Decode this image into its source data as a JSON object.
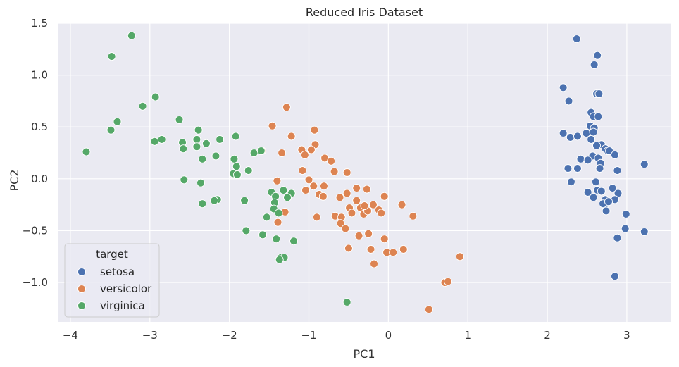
{
  "chart_data": {
    "type": "scatter",
    "title": "Reduced Iris Dataset",
    "xlabel": "PC1",
    "ylabel": "PC2",
    "xlim": [
      -4.15,
      3.55
    ],
    "ylim": [
      -1.38,
      1.5
    ],
    "xticks": [
      -4,
      -3,
      -2,
      -1,
      0,
      1,
      2,
      3
    ],
    "xtick_labels": [
      "−4",
      "−3",
      "−2",
      "−1",
      "0",
      "1",
      "2",
      "3"
    ],
    "yticks": [
      -1.0,
      -0.5,
      0.0,
      0.5,
      1.0,
      1.5
    ],
    "ytick_labels": [
      "−1.0",
      "−0.5",
      "0.0",
      "0.5",
      "1.0",
      "1.5"
    ],
    "grid": true,
    "legend": {
      "title": "target",
      "position": "bottom-left"
    },
    "series": [
      {
        "name": "setosa",
        "color": "#4c72b0",
        "points": [
          [
            2.37,
            1.35
          ],
          [
            2.63,
            1.19
          ],
          [
            2.59,
            1.1
          ],
          [
            2.62,
            0.82
          ],
          [
            2.65,
            0.82
          ],
          [
            2.2,
            0.88
          ],
          [
            2.27,
            0.75
          ],
          [
            2.55,
            0.64
          ],
          [
            2.58,
            0.6
          ],
          [
            2.64,
            0.6
          ],
          [
            2.54,
            0.51
          ],
          [
            2.59,
            0.49
          ],
          [
            2.2,
            0.44
          ],
          [
            2.29,
            0.4
          ],
          [
            2.38,
            0.41
          ],
          [
            2.49,
            0.44
          ],
          [
            2.58,
            0.45
          ],
          [
            2.55,
            0.38
          ],
          [
            2.68,
            0.33
          ],
          [
            2.62,
            0.32
          ],
          [
            2.73,
            0.29
          ],
          [
            2.76,
            0.27
          ],
          [
            2.78,
            0.27
          ],
          [
            2.57,
            0.22
          ],
          [
            2.64,
            0.2
          ],
          [
            2.85,
            0.23
          ],
          [
            2.42,
            0.19
          ],
          [
            2.51,
            0.18
          ],
          [
            2.67,
            0.15
          ],
          [
            3.22,
            0.14
          ],
          [
            2.26,
            0.1
          ],
          [
            2.38,
            0.1
          ],
          [
            2.66,
            0.1
          ],
          [
            2.88,
            0.08
          ],
          [
            2.3,
            -0.03
          ],
          [
            2.61,
            -0.03
          ],
          [
            2.82,
            -0.09
          ],
          [
            2.51,
            -0.13
          ],
          [
            2.63,
            -0.11
          ],
          [
            2.68,
            -0.12
          ],
          [
            2.89,
            -0.14
          ],
          [
            2.58,
            -0.18
          ],
          [
            2.73,
            -0.2
          ],
          [
            2.85,
            -0.2
          ],
          [
            2.72,
            -0.25
          ],
          [
            2.7,
            -0.24
          ],
          [
            2.77,
            -0.22
          ],
          [
            2.74,
            -0.31
          ],
          [
            2.99,
            -0.34
          ],
          [
            2.98,
            -0.48
          ],
          [
            3.22,
            -0.51
          ],
          [
            2.88,
            -0.57
          ],
          [
            2.85,
            -0.94
          ]
        ]
      },
      {
        "name": "versicolor",
        "color": "#dd8452",
        "points": [
          [
            -1.28,
            0.69
          ],
          [
            -1.46,
            0.51
          ],
          [
            -0.93,
            0.47
          ],
          [
            -1.22,
            0.41
          ],
          [
            -0.92,
            0.33
          ],
          [
            -0.97,
            0.28
          ],
          [
            -1.59,
            0.27
          ],
          [
            -1.34,
            0.25
          ],
          [
            -1.09,
            0.28
          ],
          [
            -1.05,
            0.23
          ],
          [
            -0.8,
            0.2
          ],
          [
            -0.72,
            0.17
          ],
          [
            -1.08,
            0.08
          ],
          [
            -1.0,
            -0.01
          ],
          [
            -1.4,
            -0.02
          ],
          [
            -0.68,
            0.07
          ],
          [
            -0.52,
            0.06
          ],
          [
            -0.94,
            -0.07
          ],
          [
            -0.81,
            -0.07
          ],
          [
            -1.04,
            -0.11
          ],
          [
            -0.87,
            -0.15
          ],
          [
            -0.4,
            -0.09
          ],
          [
            -0.52,
            -0.14
          ],
          [
            -0.27,
            -0.1
          ],
          [
            -0.61,
            -0.18
          ],
          [
            -0.82,
            -0.17
          ],
          [
            -1.27,
            -0.18
          ],
          [
            -0.4,
            -0.21
          ],
          [
            -0.05,
            -0.17
          ],
          [
            -0.49,
            -0.28
          ],
          [
            -0.35,
            -0.28
          ],
          [
            -0.46,
            -0.33
          ],
          [
            -0.31,
            -0.34
          ],
          [
            -0.26,
            -0.31
          ],
          [
            -0.3,
            -0.26
          ],
          [
            -0.12,
            -0.3
          ],
          [
            -0.09,
            -0.33
          ],
          [
            -0.19,
            -0.25
          ],
          [
            -1.3,
            -0.32
          ],
          [
            -0.9,
            -0.37
          ],
          [
            -0.67,
            -0.36
          ],
          [
            -0.59,
            -0.37
          ],
          [
            0.17,
            -0.25
          ],
          [
            0.31,
            -0.36
          ],
          [
            -1.39,
            -0.42
          ],
          [
            -0.6,
            -0.43
          ],
          [
            -0.54,
            -0.48
          ],
          [
            -0.25,
            -0.53
          ],
          [
            -0.37,
            -0.55
          ],
          [
            -0.05,
            -0.58
          ],
          [
            -0.5,
            -0.67
          ],
          [
            -0.22,
            -0.68
          ],
          [
            -0.02,
            -0.71
          ],
          [
            0.06,
            -0.71
          ],
          [
            0.19,
            -0.68
          ],
          [
            0.9,
            -0.75
          ],
          [
            -0.18,
            -0.82
          ],
          [
            0.71,
            -1.0
          ],
          [
            0.75,
            -0.99
          ],
          [
            0.51,
            -1.26
          ]
        ]
      },
      {
        "name": "virginica",
        "color": "#55a868",
        "points": [
          [
            -3.23,
            1.38
          ],
          [
            -3.48,
            1.18
          ],
          [
            -2.93,
            0.79
          ],
          [
            -3.09,
            0.7
          ],
          [
            -2.63,
            0.57
          ],
          [
            -3.41,
            0.55
          ],
          [
            -3.49,
            0.47
          ],
          [
            -2.39,
            0.47
          ],
          [
            -1.92,
            0.41
          ],
          [
            -3.8,
            0.26
          ],
          [
            -2.94,
            0.36
          ],
          [
            -2.85,
            0.38
          ],
          [
            -2.59,
            0.35
          ],
          [
            -2.41,
            0.38
          ],
          [
            -2.29,
            0.34
          ],
          [
            -2.12,
            0.38
          ],
          [
            -2.58,
            0.29
          ],
          [
            -2.41,
            0.31
          ],
          [
            -2.17,
            0.22
          ],
          [
            -1.94,
            0.19
          ],
          [
            -1.69,
            0.25
          ],
          [
            -1.6,
            0.27
          ],
          [
            -2.34,
            0.19
          ],
          [
            -1.91,
            0.12
          ],
          [
            -1.76,
            0.08
          ],
          [
            -1.95,
            0.05
          ],
          [
            -1.9,
            0.04
          ],
          [
            -2.57,
            -0.01
          ],
          [
            -2.36,
            -0.04
          ],
          [
            -1.47,
            -0.13
          ],
          [
            -1.32,
            -0.11
          ],
          [
            -1.22,
            -0.14
          ],
          [
            -1.27,
            -0.18
          ],
          [
            -1.42,
            -0.17
          ],
          [
            -2.15,
            -0.2
          ],
          [
            -1.81,
            -0.21
          ],
          [
            -2.19,
            -0.21
          ],
          [
            -1.43,
            -0.23
          ],
          [
            -2.34,
            -0.24
          ],
          [
            -1.44,
            -0.29
          ],
          [
            -1.53,
            -0.37
          ],
          [
            -1.38,
            -0.33
          ],
          [
            -1.79,
            -0.5
          ],
          [
            -1.58,
            -0.54
          ],
          [
            -1.41,
            -0.58
          ],
          [
            -1.19,
            -0.6
          ],
          [
            -1.35,
            -0.76
          ],
          [
            -1.31,
            -0.76
          ],
          [
            -1.37,
            -0.78
          ],
          [
            -0.52,
            -1.19
          ]
        ]
      }
    ]
  }
}
